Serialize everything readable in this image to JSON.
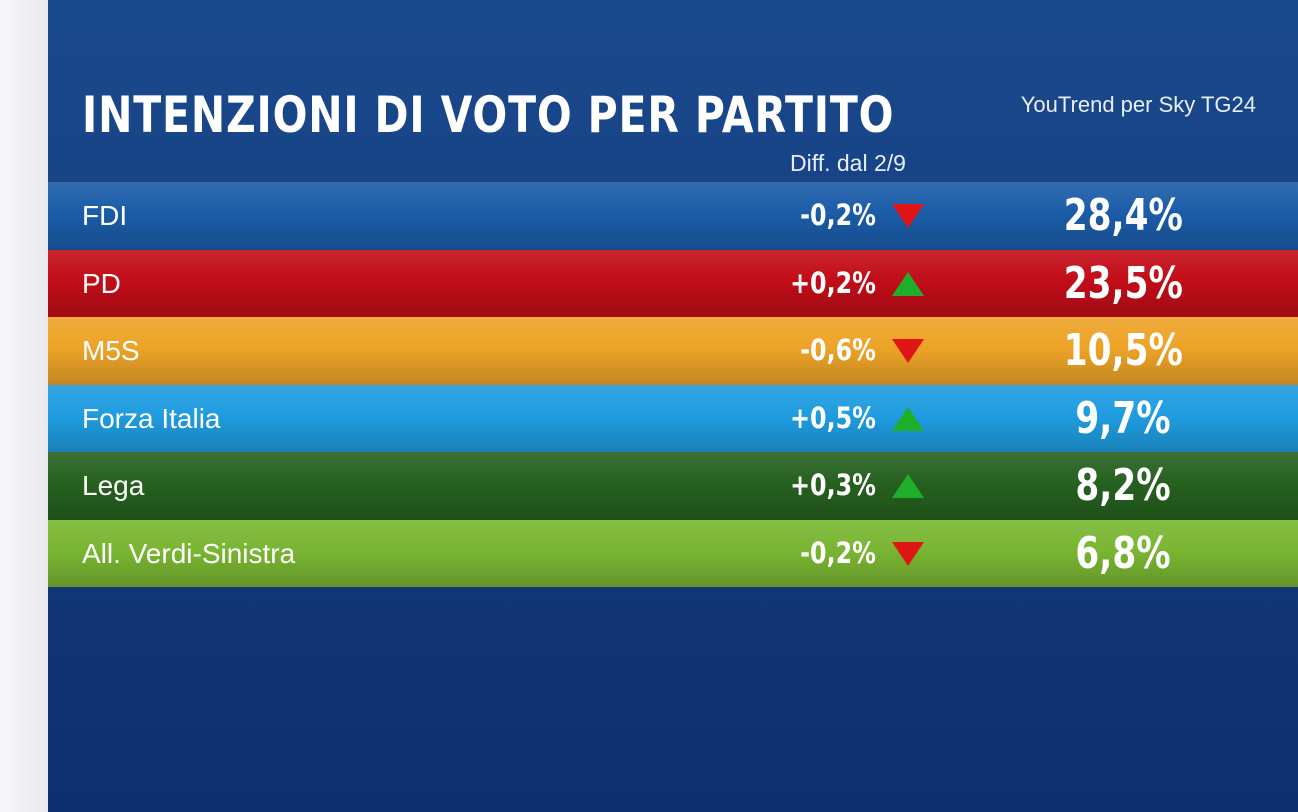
{
  "colors": {
    "panel_top": "#1a4a8c",
    "panel_bottom": "#0f2e6e",
    "arrow_up": "#1fae2a",
    "arrow_down": "#e01515"
  },
  "chart_data": {
    "type": "table",
    "title": "INTENZIONI DI VOTO PER PARTITO",
    "source": "YouTrend per Sky TG24",
    "diff_header": "Diff. dal 2/9",
    "rows": [
      {
        "party": "FDI",
        "diff": "-0,2%",
        "trend": "down",
        "value": "28,4%",
        "color": "#1b5ca8"
      },
      {
        "party": "PD",
        "diff": "+0,2%",
        "trend": "up",
        "value": "23,5%",
        "color": "#c20d18"
      },
      {
        "party": "M5S",
        "diff": "-0,6%",
        "trend": "down",
        "value": "10,5%",
        "color": "#eda327"
      },
      {
        "party": "Forza Italia",
        "diff": "+0,5%",
        "trend": "up",
        "value": "9,7%",
        "color": "#1f9ce0"
      },
      {
        "party": "Lega",
        "diff": "+0,3%",
        "trend": "up",
        "value": "8,2%",
        "color": "#26611f"
      },
      {
        "party": "All. Verdi-Sinistra",
        "diff": "-0,2%",
        "trend": "down",
        "value": "6,8%",
        "color": "#79b632"
      }
    ]
  }
}
